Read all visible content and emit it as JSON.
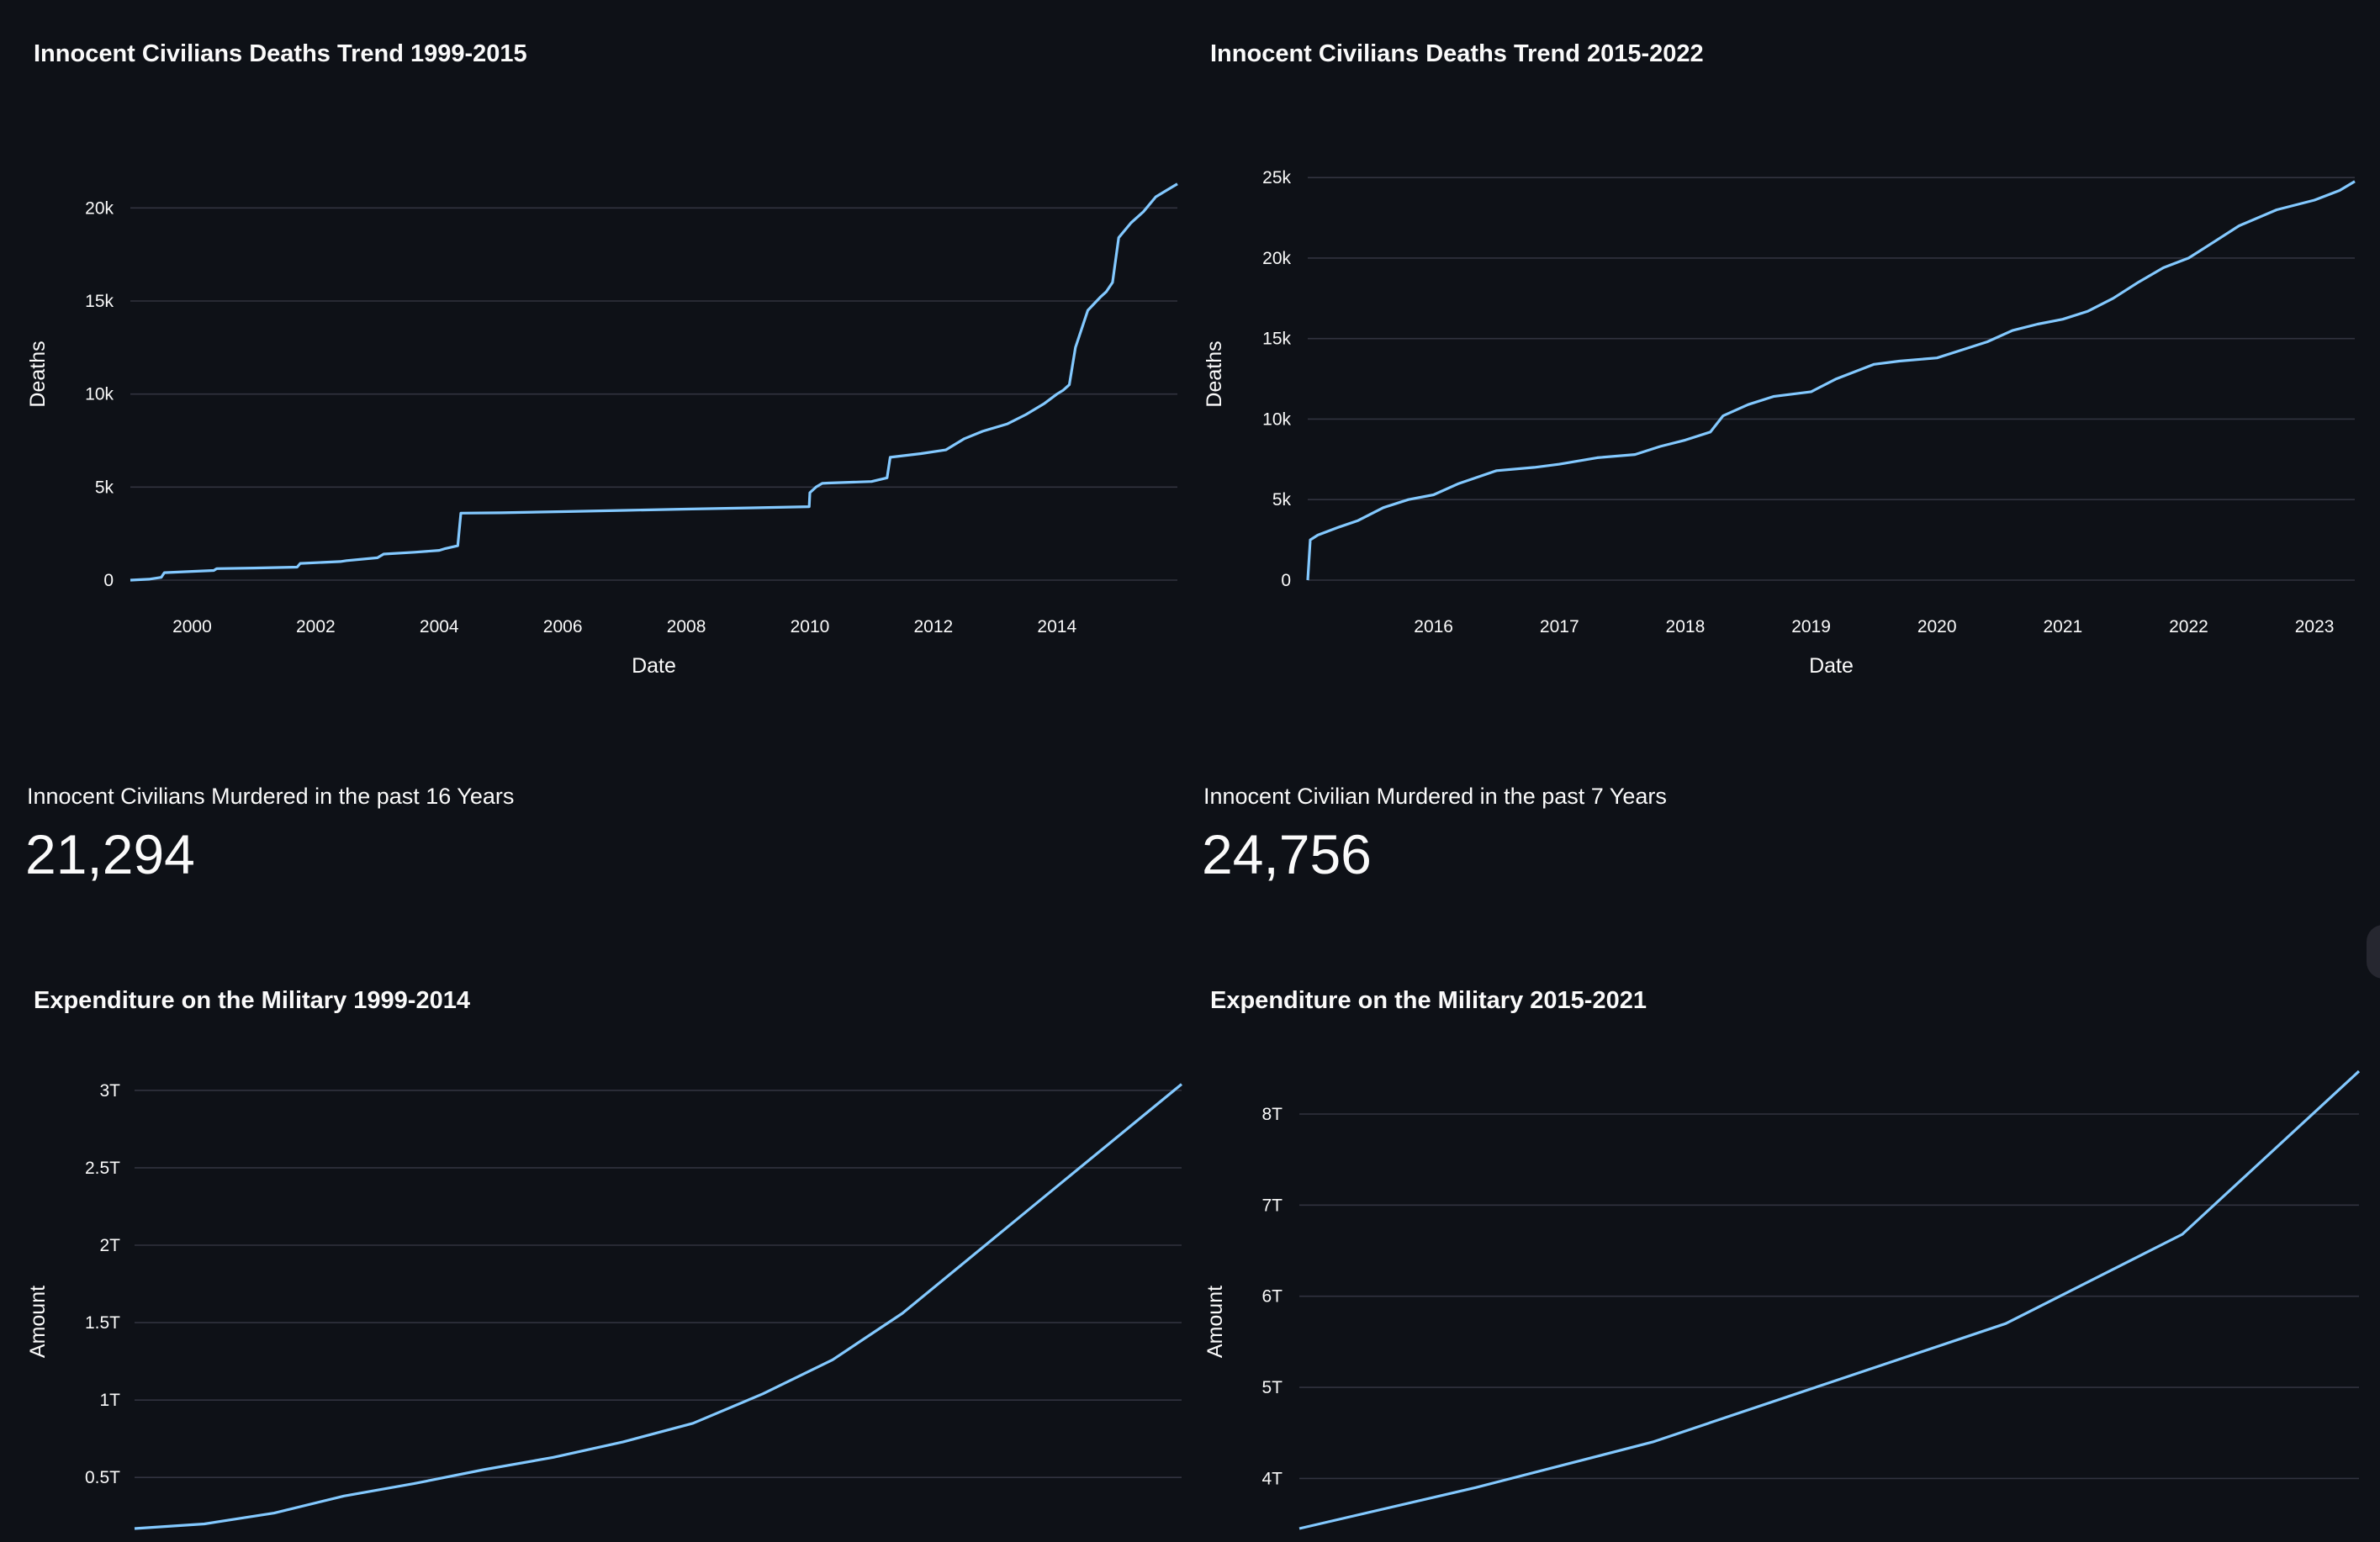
{
  "colors": {
    "background": "#0e1117",
    "line": "#83c9ff",
    "grid": "#31333f",
    "text": "#fafafa"
  },
  "metrics": [
    {
      "label": "Innocent Civilians Murdered in the past 16 Years",
      "value": "21,294"
    },
    {
      "label": "Innocent Civilian Murdered in the past 7 Years",
      "value": "24,756"
    }
  ],
  "chart_data": [
    {
      "type": "line",
      "title": "Innocent Civilians Deaths Trend 1999-2015",
      "xlabel": "Date",
      "ylabel": "Deaths",
      "xlim": [
        1999.0,
        2015.95
      ],
      "ylim": [
        0,
        22500
      ],
      "x_ticks": [
        2000,
        2002,
        2004,
        2006,
        2008,
        2010,
        2012,
        2014
      ],
      "x_tick_labels": [
        "2000",
        "2002",
        "2004",
        "2006",
        "2008",
        "2010",
        "2012",
        "2014"
      ],
      "y_ticks": [
        0,
        5000,
        10000,
        15000,
        20000
      ],
      "y_tick_labels": [
        "0",
        "5k",
        "10k",
        "15k",
        "20k"
      ],
      "grid": true,
      "series": [
        {
          "name": "Deaths",
          "x": [
            1999.0,
            1999.3,
            1999.5,
            1999.55,
            2000.0,
            2000.35,
            2000.4,
            2001.0,
            2001.7,
            2001.75,
            2002.4,
            2002.5,
            2003.0,
            2003.1,
            2003.6,
            2004.0,
            2004.1,
            2004.3,
            2004.35,
            2005.0,
            2006.0,
            2007.0,
            2008.0,
            2009.0,
            2009.99,
            2010.0,
            2010.1,
            2010.2,
            2010.3,
            2011.0,
            2011.25,
            2011.3,
            2011.8,
            2012.2,
            2012.5,
            2012.8,
            2013.2,
            2013.5,
            2013.8,
            2014.0,
            2014.1,
            2014.2,
            2014.3,
            2014.5,
            2014.7,
            2014.8,
            2014.9,
            2015.0,
            2015.2,
            2015.4,
            2015.6,
            2015.8,
            2015.95
          ],
          "y": [
            0,
            50,
            150,
            400,
            470,
            520,
            620,
            650,
            700,
            900,
            1000,
            1050,
            1200,
            1400,
            1500,
            1600,
            1700,
            1850,
            3600,
            3620,
            3680,
            3750,
            3820,
            3880,
            3950,
            4700,
            5000,
            5200,
            5220,
            5300,
            5500,
            6600,
            6800,
            7000,
            7600,
            8000,
            8400,
            8900,
            9500,
            10000,
            10200,
            10500,
            12500,
            14500,
            15200,
            15500,
            16000,
            18400,
            19200,
            19800,
            20600,
            21000,
            21294
          ]
        }
      ]
    },
    {
      "type": "line",
      "title": "Innocent Civilians Deaths Trend 2015-2022",
      "xlabel": "Date",
      "ylabel": "Deaths",
      "xlim": [
        2015.0,
        2023.32
      ],
      "ylim": [
        0,
        26000
      ],
      "x_ticks": [
        2016,
        2017,
        2018,
        2019,
        2020,
        2021,
        2022,
        2023
      ],
      "x_tick_labels": [
        "2016",
        "2017",
        "2018",
        "2019",
        "2020",
        "2021",
        "2022",
        "2023"
      ],
      "y_ticks": [
        0,
        5000,
        10000,
        15000,
        20000,
        25000
      ],
      "y_tick_labels": [
        "0",
        "5k",
        "10k",
        "15k",
        "20k",
        "25k"
      ],
      "grid": true,
      "series": [
        {
          "name": "Deaths",
          "x": [
            2015.0,
            2015.02,
            2015.08,
            2015.25,
            2015.4,
            2015.6,
            2015.8,
            2016.0,
            2016.2,
            2016.5,
            2016.8,
            2017.0,
            2017.3,
            2017.6,
            2017.8,
            2018.0,
            2018.2,
            2018.3,
            2018.5,
            2018.7,
            2019.0,
            2019.2,
            2019.5,
            2019.7,
            2020.0,
            2020.2,
            2020.4,
            2020.6,
            2020.8,
            2021.0,
            2021.2,
            2021.4,
            2021.6,
            2021.8,
            2022.0,
            2022.2,
            2022.4,
            2022.7,
            2023.0,
            2023.2,
            2023.32
          ],
          "y": [
            0,
            2500,
            2800,
            3300,
            3700,
            4500,
            5000,
            5300,
            6000,
            6800,
            7000,
            7200,
            7600,
            7800,
            8300,
            8700,
            9200,
            10200,
            10900,
            11400,
            11700,
            12500,
            13400,
            13600,
            13800,
            14300,
            14800,
            15500,
            15900,
            16200,
            16700,
            17500,
            18500,
            19400,
            20000,
            21000,
            22000,
            23000,
            23600,
            24200,
            24756
          ]
        }
      ]
    },
    {
      "type": "line",
      "title": "Expenditure on the Military 1999-2014",
      "xlabel": "",
      "ylabel": "Amount",
      "xlim": [
        1999,
        2014
      ],
      "ylim": [
        0.17,
        3.2
      ],
      "y_ticks": [
        0.5,
        1,
        1.5,
        2,
        2.5,
        3
      ],
      "y_tick_labels": [
        "0.5T",
        "1T",
        "1.5T",
        "2T",
        "2.5T",
        "3T"
      ],
      "y_unit": "trillions",
      "grid": true,
      "series": [
        {
          "name": "Amount",
          "x": [
            1999,
            2000,
            2001,
            2002,
            2003,
            2004,
            2005,
            2006,
            2007,
            2008,
            2009,
            2010,
            2011,
            2012,
            2013,
            2014
          ],
          "y": [
            0.17,
            0.2,
            0.27,
            0.38,
            0.46,
            0.55,
            0.63,
            0.73,
            0.85,
            1.04,
            1.26,
            1.56,
            1.93,
            2.3,
            2.67,
            3.04
          ]
        }
      ]
    },
    {
      "type": "line",
      "title": "Expenditure on the Military 2015-2021",
      "xlabel": "",
      "ylabel": "Amount",
      "xlim": [
        2015,
        2021
      ],
      "ylim": [
        3.45,
        8.6
      ],
      "y_ticks": [
        4,
        5,
        6,
        7,
        8
      ],
      "y_tick_labels": [
        "4T",
        "5T",
        "6T",
        "7T",
        "8T"
      ],
      "y_unit": "trillions",
      "grid": true,
      "series": [
        {
          "name": "Amount",
          "x": [
            2015,
            2016,
            2017,
            2018,
            2019,
            2020,
            2021
          ],
          "y": [
            3.45,
            3.9,
            4.4,
            5.05,
            5.7,
            6.68,
            8.47
          ]
        }
      ]
    }
  ]
}
